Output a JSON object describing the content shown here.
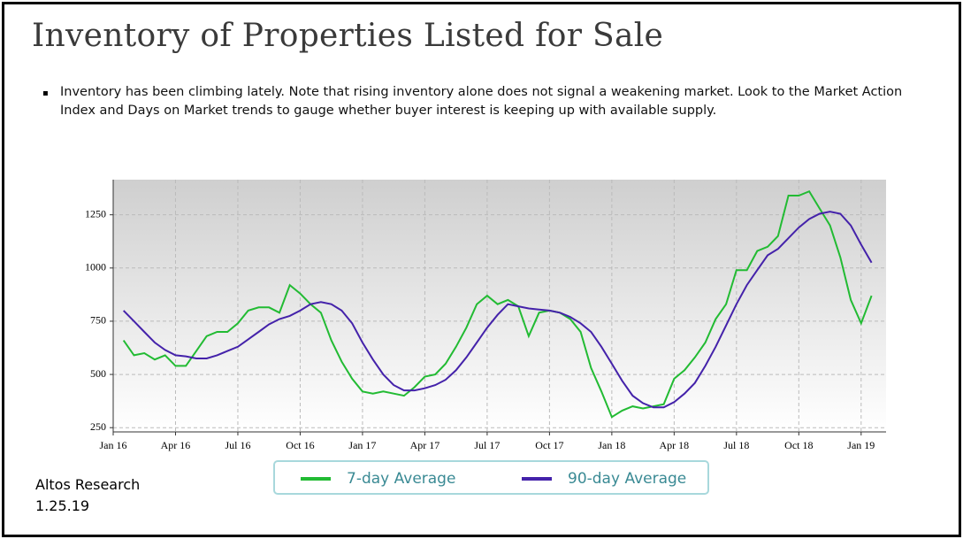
{
  "title": "Inventory of Properties Listed for Sale",
  "bullet": "Inventory has been climbing lately. Note that rising inventory alone does not signal a weakening market. Look to the Market Action Index and Days on Market trends to gauge whether buyer interest is keeping up with available supply.",
  "source": {
    "name": "Altos Research",
    "date": "1.25.19"
  },
  "chart_data": {
    "type": "line",
    "grid": true,
    "x": [
      0.5,
      1,
      1.5,
      2,
      2.5,
      3,
      3.5,
      4,
      4.5,
      5,
      5.5,
      6,
      6.5,
      7,
      7.5,
      8,
      8.5,
      9,
      9.5,
      10,
      10.5,
      11,
      11.5,
      12,
      12.5,
      13,
      13.5,
      14,
      14.5,
      15,
      15.5,
      16,
      16.5,
      17,
      17.5,
      18,
      18.5,
      19,
      19.5,
      20,
      20.5,
      21,
      21.5,
      22,
      22.5,
      23,
      23.5,
      24,
      24.5,
      25,
      25.5,
      26,
      26.5,
      27,
      27.5,
      28,
      28.5,
      29,
      29.5,
      30,
      30.5,
      31,
      31.5,
      32,
      32.5,
      33,
      33.5,
      34,
      34.5,
      35,
      35.5,
      36,
      36.5
    ],
    "xlim": [
      0,
      37.2
    ],
    "xticks": [
      {
        "value": 0,
        "label": "Jan 16"
      },
      {
        "value": 3,
        "label": "Apr 16"
      },
      {
        "value": 6,
        "label": "Jul 16"
      },
      {
        "value": 9,
        "label": "Oct 16"
      },
      {
        "value": 12,
        "label": "Jan 17"
      },
      {
        "value": 15,
        "label": "Apr 17"
      },
      {
        "value": 18,
        "label": "Jul 17"
      },
      {
        "value": 21,
        "label": "Oct 17"
      },
      {
        "value": 24,
        "label": "Jan 18"
      },
      {
        "value": 27,
        "label": "Apr 18"
      },
      {
        "value": 30,
        "label": "Jul 18"
      },
      {
        "value": 33,
        "label": "Oct 18"
      },
      {
        "value": 36,
        "label": "Jan 19"
      }
    ],
    "ylim": [
      230,
      1415
    ],
    "yticks": [
      250,
      500,
      750,
      1000,
      1250
    ],
    "series": [
      {
        "name": "7-day Average",
        "color": "#22bb33",
        "values": [
          660,
          590,
          600,
          570,
          590,
          540,
          540,
          610,
          680,
          700,
          700,
          740,
          800,
          815,
          815,
          790,
          920,
          880,
          830,
          790,
          660,
          560,
          480,
          420,
          410,
          420,
          410,
          400,
          440,
          490,
          500,
          550,
          630,
          720,
          830,
          870,
          830,
          850,
          820,
          680,
          790,
          800,
          790,
          760,
          700,
          530,
          420,
          300,
          330,
          350,
          340,
          350,
          360,
          480,
          520,
          580,
          650,
          760,
          830,
          990,
          990,
          1080,
          1100,
          1150,
          1340,
          1340,
          1360,
          1280,
          1200,
          1050,
          850,
          740,
          870
        ]
      },
      {
        "name": "90-day Average",
        "color": "#4422aa",
        "values": [
          800,
          750,
          700,
          650,
          615,
          590,
          585,
          575,
          575,
          590,
          610,
          630,
          665,
          700,
          735,
          760,
          775,
          800,
          830,
          840,
          830,
          800,
          740,
          650,
          570,
          500,
          450,
          425,
          425,
          435,
          450,
          475,
          520,
          580,
          650,
          720,
          780,
          830,
          820,
          810,
          805,
          800,
          790,
          770,
          740,
          700,
          630,
          550,
          470,
          400,
          365,
          345,
          345,
          370,
          410,
          460,
          540,
          630,
          730,
          830,
          920,
          990,
          1060,
          1090,
          1140,
          1190,
          1230,
          1255,
          1265,
          1255,
          1200,
          1110,
          1025
        ]
      }
    ]
  }
}
